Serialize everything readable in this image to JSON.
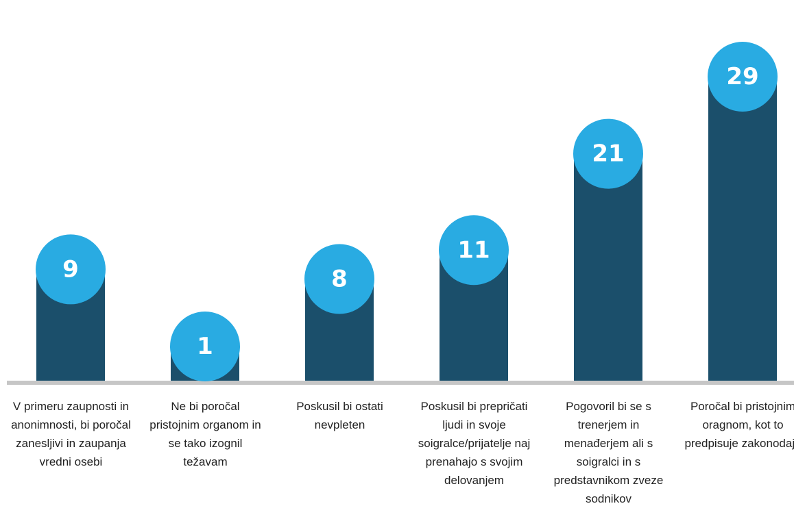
{
  "chart_data": {
    "type": "bar",
    "categories": [
      "V primeru zaupnosti in anonimnosti, bi poročal zanesljivi in zaupanja vredni osebi",
      "Ne bi poročal pristojnim organom in se tako izognil težavam",
      "Poskusil bi ostati nevpleten",
      "Poskusil bi prepričati ljudi in svoje soigralce/prijatelje naj prenahajo s svojim delovanjem",
      "Pogovoril bi se s trenerjem in menađerjem ali s soigralci in s predstavnikom zveze sodnikov",
      "Poročal bi pristojnim oragnom, kot to predpisuje zakonodaja"
    ],
    "values": [
      9,
      1,
      8,
      11,
      21,
      29
    ],
    "value_labels": [
      "9",
      "1",
      "8",
      "11",
      "21",
      "29"
    ],
    "title": "",
    "xlabel": "",
    "ylabel": "",
    "ylim": [
      0,
      29
    ],
    "grid": false,
    "legend": "none",
    "colors": {
      "bar": "#1b4f6b",
      "bubble": "#29abe2",
      "baseline": "#c6c6c6",
      "label_text": "#222222",
      "value_text": "#ffffff"
    }
  }
}
